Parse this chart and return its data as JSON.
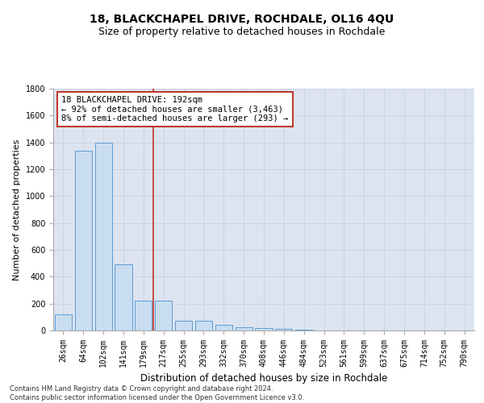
{
  "title": "18, BLACKCHAPEL DRIVE, ROCHDALE, OL16 4QU",
  "subtitle": "Size of property relative to detached houses in Rochdale",
  "xlabel": "Distribution of detached houses by size in Rochdale",
  "ylabel": "Number of detached properties",
  "categories": [
    "26sqm",
    "64sqm",
    "102sqm",
    "141sqm",
    "179sqm",
    "217sqm",
    "255sqm",
    "293sqm",
    "332sqm",
    "370sqm",
    "408sqm",
    "446sqm",
    "484sqm",
    "523sqm",
    "561sqm",
    "599sqm",
    "637sqm",
    "675sqm",
    "714sqm",
    "752sqm",
    "790sqm"
  ],
  "values": [
    120,
    1340,
    1400,
    490,
    220,
    220,
    70,
    70,
    40,
    25,
    20,
    15,
    5,
    0,
    0,
    0,
    0,
    0,
    0,
    0,
    0
  ],
  "bar_color": "#c9ddf0",
  "bar_edge_color": "#5b9bd5",
  "vline_x": 4.5,
  "vline_color": "#c0392b",
  "annotation_text": "18 BLACKCHAPEL DRIVE: 192sqm\n← 92% of detached houses are smaller (3,463)\n8% of semi-detached houses are larger (293) →",
  "annotation_box_color": "#ffffff",
  "annotation_box_edge": "#c0392b",
  "ylim": [
    0,
    1800
  ],
  "yticks": [
    0,
    200,
    400,
    600,
    800,
    1000,
    1200,
    1400,
    1600,
    1800
  ],
  "grid_color": "#ccd5e3",
  "background_color": "#dde4f0",
  "footer": "Contains HM Land Registry data © Crown copyright and database right 2024.\nContains public sector information licensed under the Open Government Licence v3.0.",
  "title_fontsize": 10,
  "subtitle_fontsize": 9,
  "xlabel_fontsize": 8.5,
  "ylabel_fontsize": 8,
  "tick_fontsize": 7,
  "annotation_fontsize": 7.5,
  "footer_fontsize": 6
}
